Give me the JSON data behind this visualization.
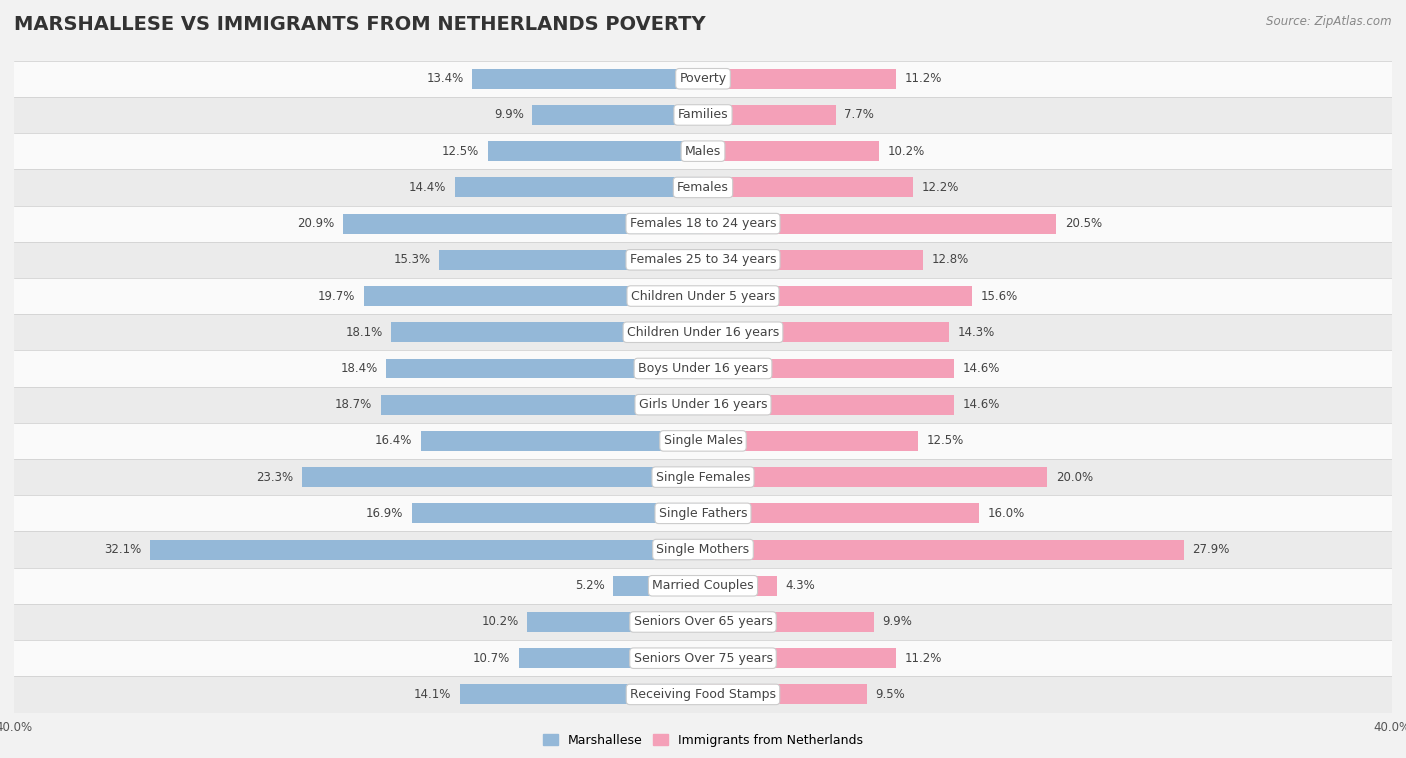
{
  "title": "MARSHALLESE VS IMMIGRANTS FROM NETHERLANDS POVERTY",
  "source": "Source: ZipAtlas.com",
  "categories": [
    "Poverty",
    "Families",
    "Males",
    "Females",
    "Females 18 to 24 years",
    "Females 25 to 34 years",
    "Children Under 5 years",
    "Children Under 16 years",
    "Boys Under 16 years",
    "Girls Under 16 years",
    "Single Males",
    "Single Females",
    "Single Fathers",
    "Single Mothers",
    "Married Couples",
    "Seniors Over 65 years",
    "Seniors Over 75 years",
    "Receiving Food Stamps"
  ],
  "marshallese": [
    13.4,
    9.9,
    12.5,
    14.4,
    20.9,
    15.3,
    19.7,
    18.1,
    18.4,
    18.7,
    16.4,
    23.3,
    16.9,
    32.1,
    5.2,
    10.2,
    10.7,
    14.1
  ],
  "netherlands": [
    11.2,
    7.7,
    10.2,
    12.2,
    20.5,
    12.8,
    15.6,
    14.3,
    14.6,
    14.6,
    12.5,
    20.0,
    16.0,
    27.9,
    4.3,
    9.9,
    11.2,
    9.5
  ],
  "marshallese_color": "#94b8d8",
  "netherlands_color": "#f4a0b8",
  "background_color": "#f2f2f2",
  "row_bg_light": "#fafafa",
  "row_bg_dark": "#ebebeb",
  "axis_max": 40.0,
  "legend_marshallese": "Marshallese",
  "legend_netherlands": "Immigrants from Netherlands",
  "title_fontsize": 14,
  "label_fontsize": 9,
  "value_fontsize": 8.5,
  "source_fontsize": 8.5,
  "bar_height": 0.55
}
